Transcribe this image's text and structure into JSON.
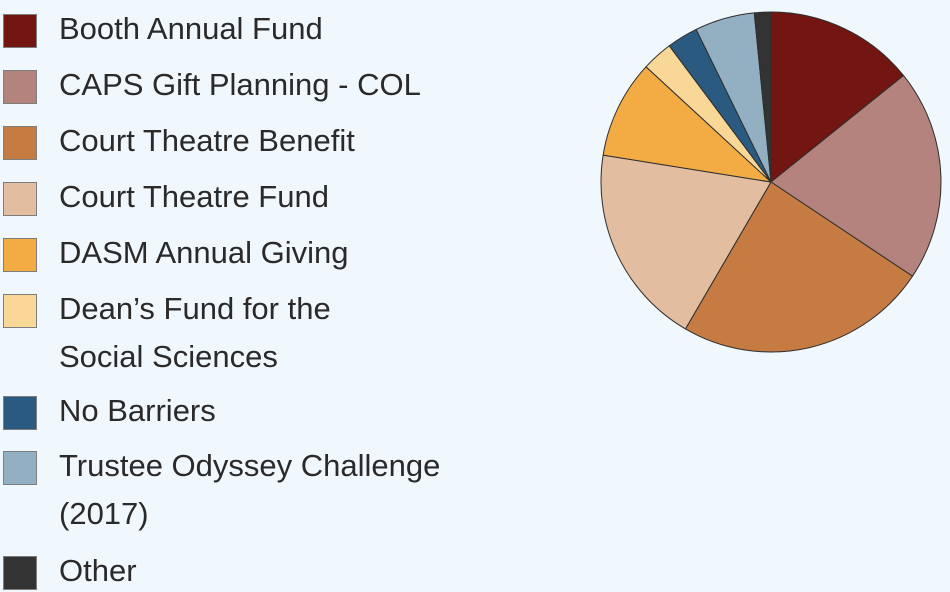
{
  "chart_data": {
    "type": "pie",
    "legend_position": "left",
    "slices": [
      {
        "label": "Booth Annual Fund",
        "value": 14.5,
        "color": "#731510"
      },
      {
        "label": "CAPS Gift Planning - COL",
        "value": 20.5,
        "color": "#b5837e"
      },
      {
        "label": "Court Theatre Benefit",
        "value": 24.5,
        "color": "#c57b42"
      },
      {
        "label": "Court Theatre Fund",
        "value": 19.5,
        "color": "#e2bd9f"
      },
      {
        "label": "DASM Annual Giving",
        "value": 9.5,
        "color": "#f3ac43"
      },
      {
        "label": "Dean’s Fund for the Social Sciences",
        "value": 3.0,
        "color": "#f9d796"
      },
      {
        "label": "No Barriers",
        "value": 3.0,
        "color": "#2b5a80"
      },
      {
        "label": "Trustee Odyssey Challenge (2017)",
        "value": 5.8,
        "color": "#93b0c3"
      },
      {
        "label": "Other",
        "value": 1.6,
        "color": "#333333"
      }
    ]
  }
}
